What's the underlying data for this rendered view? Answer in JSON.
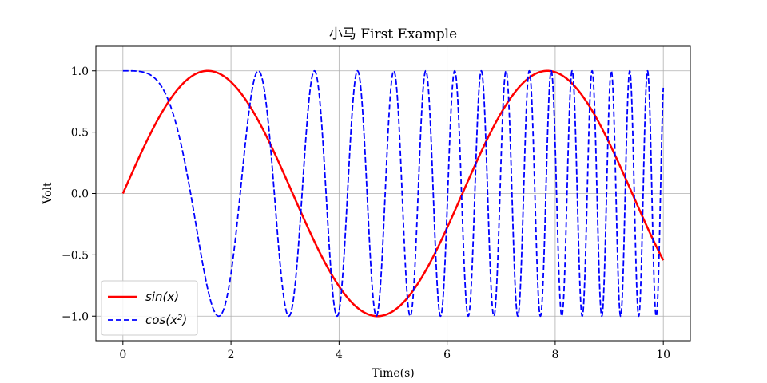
{
  "chart_data": {
    "type": "line",
    "title": "小马 First Example",
    "xlabel": "Time(s)",
    "ylabel": "Volt",
    "xlim": [
      -0.5,
      10.5
    ],
    "ylim": [
      -1.2,
      1.2
    ],
    "xticks": [
      0,
      2,
      4,
      6,
      8,
      10
    ],
    "xtick_labels": [
      "0",
      "2",
      "4",
      "6",
      "8",
      "10"
    ],
    "yticks": [
      -1.0,
      -0.5,
      0.0,
      0.5,
      1.0
    ],
    "ytick_labels": [
      "−1.0",
      "−0.5",
      "0.0",
      "0.5",
      "1.0"
    ],
    "grid": true,
    "legend_position": "lower-left",
    "x_range": [
      0,
      10
    ],
    "series": [
      {
        "name": "sin(x)",
        "color": "#ff0000",
        "style": "solid",
        "expression": "sin(x)",
        "legend_base": "sin(x)",
        "legend_sup": ""
      },
      {
        "name": "cos(x²)",
        "color": "#0000ff",
        "style": "dashed",
        "expression": "cos(x^2)",
        "legend_base": "cos(x",
        "legend_sup": "2",
        "legend_tail": ")"
      }
    ]
  }
}
